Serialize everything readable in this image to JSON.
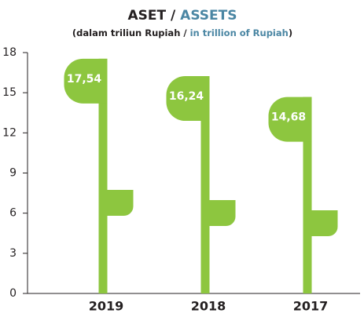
{
  "chart_data": {
    "type": "bar",
    "title": [
      "ASET / ",
      "ASSETS"
    ],
    "title_colors": [
      "#231f20",
      "#4a86a3"
    ],
    "subtitle": [
      "(dalam triliun Rupiah / ",
      "in trillion of Rupiah",
      ")"
    ],
    "subtitle_colors": [
      "#231f20",
      "#4a86a3",
      "#231f20"
    ],
    "categories": [
      "2019",
      "2018",
      "2017"
    ],
    "values": [
      17.54,
      16.24,
      14.68
    ],
    "value_labels": [
      "17,54",
      "16,24",
      "14,68"
    ],
    "color": "#8dc63f",
    "ylim": [
      0,
      18
    ],
    "yticks": [
      0,
      3,
      6,
      9,
      12,
      15,
      18
    ],
    "grid": false
  }
}
